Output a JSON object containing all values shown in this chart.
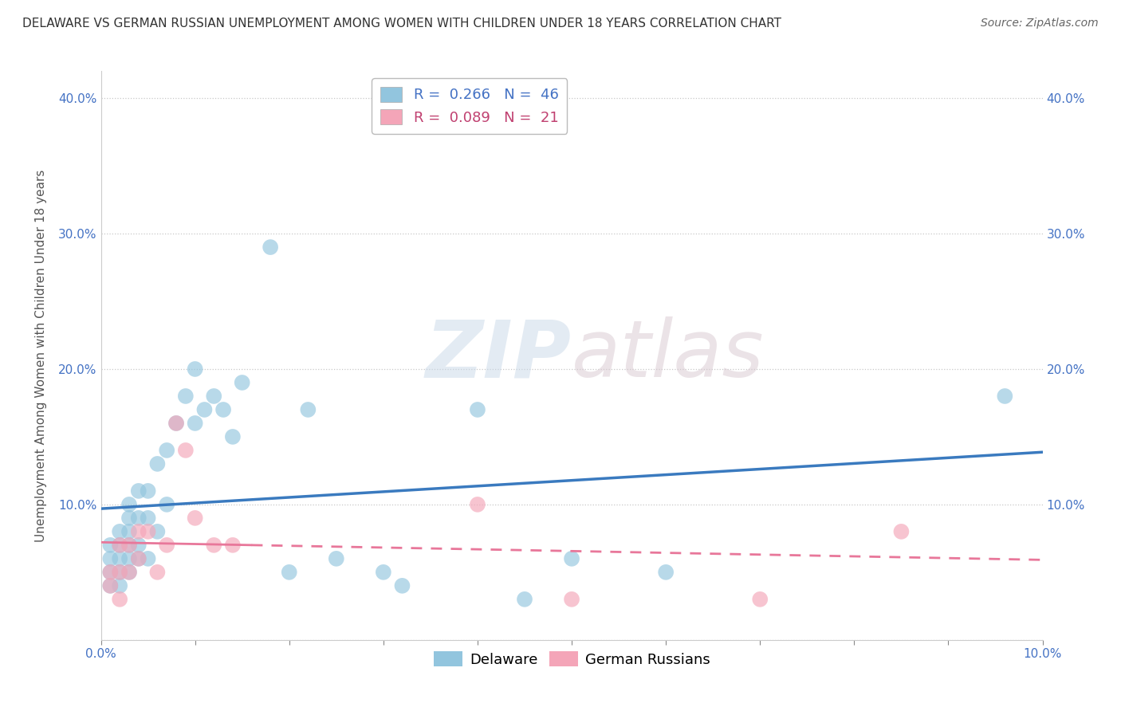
{
  "title": "DELAWARE VS GERMAN RUSSIAN UNEMPLOYMENT AMONG WOMEN WITH CHILDREN UNDER 18 YEARS CORRELATION CHART",
  "source": "Source: ZipAtlas.com",
  "ylabel": "Unemployment Among Women with Children Under 18 years",
  "xlim": [
    0.0,
    0.1
  ],
  "ylim": [
    0.0,
    0.42
  ],
  "xticks": [
    0.0,
    0.01,
    0.02,
    0.03,
    0.04,
    0.05,
    0.06,
    0.07,
    0.08,
    0.09,
    0.1
  ],
  "xtick_labels": [
    "0.0%",
    "",
    "",
    "",
    "",
    "",
    "",
    "",
    "",
    "",
    "10.0%"
  ],
  "yticks": [
    0.0,
    0.1,
    0.2,
    0.3,
    0.4
  ],
  "ytick_labels": [
    "",
    "10.0%",
    "20.0%",
    "30.0%",
    "40.0%"
  ],
  "delaware_R": 0.266,
  "delaware_N": 46,
  "german_russian_R": 0.089,
  "german_russian_N": 21,
  "delaware_color": "#92c5de",
  "german_russian_color": "#f4a5b8",
  "delaware_line_color": "#3a7abf",
  "german_russian_line_color": "#e8779a",
  "background_color": "#ffffff",
  "watermark_zip": "ZIP",
  "watermark_atlas": "atlas",
  "delaware_x": [
    0.001,
    0.001,
    0.001,
    0.001,
    0.002,
    0.002,
    0.002,
    0.002,
    0.002,
    0.003,
    0.003,
    0.003,
    0.003,
    0.003,
    0.003,
    0.004,
    0.004,
    0.004,
    0.004,
    0.005,
    0.005,
    0.005,
    0.006,
    0.006,
    0.007,
    0.007,
    0.008,
    0.009,
    0.01,
    0.01,
    0.011,
    0.012,
    0.013,
    0.014,
    0.015,
    0.018,
    0.02,
    0.022,
    0.025,
    0.03,
    0.032,
    0.04,
    0.045,
    0.05,
    0.06,
    0.096
  ],
  "delaware_y": [
    0.07,
    0.06,
    0.05,
    0.04,
    0.08,
    0.07,
    0.06,
    0.05,
    0.04,
    0.1,
    0.09,
    0.08,
    0.07,
    0.06,
    0.05,
    0.11,
    0.09,
    0.07,
    0.06,
    0.11,
    0.09,
    0.06,
    0.13,
    0.08,
    0.14,
    0.1,
    0.16,
    0.18,
    0.2,
    0.16,
    0.17,
    0.18,
    0.17,
    0.15,
    0.19,
    0.29,
    0.05,
    0.17,
    0.06,
    0.05,
    0.04,
    0.17,
    0.03,
    0.06,
    0.05,
    0.18
  ],
  "german_russian_x": [
    0.001,
    0.001,
    0.002,
    0.002,
    0.002,
    0.003,
    0.003,
    0.004,
    0.004,
    0.005,
    0.006,
    0.007,
    0.008,
    0.009,
    0.01,
    0.012,
    0.014,
    0.04,
    0.05,
    0.07,
    0.085
  ],
  "german_russian_y": [
    0.05,
    0.04,
    0.07,
    0.05,
    0.03,
    0.07,
    0.05,
    0.08,
    0.06,
    0.08,
    0.05,
    0.07,
    0.16,
    0.14,
    0.09,
    0.07,
    0.07,
    0.1,
    0.03,
    0.03,
    0.08
  ],
  "title_fontsize": 11,
  "axis_label_fontsize": 11,
  "tick_fontsize": 11,
  "legend_fontsize": 13,
  "source_fontsize": 10
}
